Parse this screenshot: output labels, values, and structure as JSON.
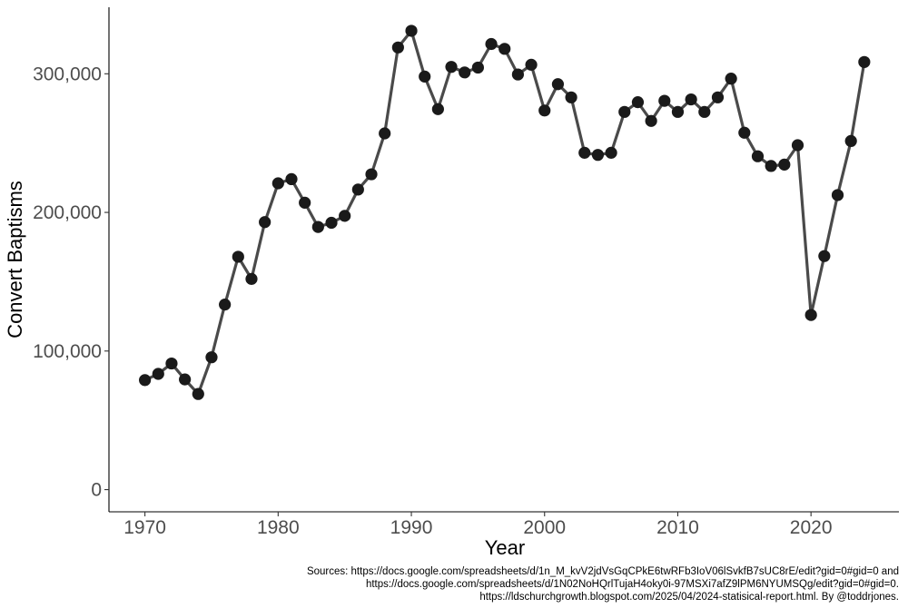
{
  "chart_data": {
    "type": "line",
    "title": "",
    "xlabel": "Year",
    "ylabel": "Convert Baptisms",
    "xlim": [
      1967.3,
      2026.6
    ],
    "ylim": [
      -16000,
      348000
    ],
    "x_ticks": [
      1970,
      1980,
      1990,
      2000,
      2010,
      2020
    ],
    "x_tick_labels": [
      "1970",
      "1980",
      "1990",
      "2000",
      "2010",
      "2020"
    ],
    "y_ticks": [
      0,
      100000,
      200000,
      300000
    ],
    "y_tick_labels": [
      "0",
      "100,000",
      "200,000",
      "300,000"
    ],
    "grid": false,
    "legend": "none",
    "line_color": "#4a4a4a",
    "point_color": "#1a1a1a",
    "series": [
      {
        "x": [
          1970,
          1971,
          1972,
          1973,
          1974,
          1975,
          1976,
          1977,
          1978,
          1979,
          1980,
          1981,
          1982,
          1983,
          1984,
          1985,
          1986,
          1987,
          1988,
          1989,
          1990,
          1991,
          1992,
          1993,
          1994,
          1995,
          1996,
          1997,
          1998,
          1999,
          2000,
          2001,
          2002,
          2003,
          2004,
          2005,
          2006,
          2007,
          2008,
          2009,
          2010,
          2011,
          2012,
          2013,
          2014,
          2015,
          2016,
          2017,
          2018,
          2019,
          2020,
          2021,
          2022,
          2023,
          2024
        ],
        "values": [
          79000,
          83500,
          91000,
          79500,
          69000,
          95500,
          133500,
          168000,
          152000,
          193000,
          221000,
          224000,
          207000,
          189500,
          192500,
          197500,
          216500,
          227500,
          257000,
          319000,
          331000,
          298000,
          274500,
          305000,
          301000,
          304500,
          321500,
          318000,
          299500,
          306500,
          273500,
          292500,
          283000,
          243000,
          241500,
          243000,
          272500,
          279500,
          266000,
          280500,
          272500,
          281500,
          272500,
          283000,
          296500,
          257500,
          240500,
          233500,
          234500,
          248500,
          126000,
          168500,
          212500,
          251500,
          308500
        ]
      }
    ]
  },
  "caption": {
    "line1": "Sources: https://docs.google.com/spreadsheets/d/1n_M_kvV2jdVsGqCPkE6twRFb3IoV06lSvkfB7sUC8rE/edit?gid=0#gid=0 and",
    "line2": "https://docs.google.com/spreadsheets/d/1N02NoHQrlTujaH4oky0i-97MSXi7afZ9lPM6NYUMSQg/edit?gid=0#gid=0.",
    "line3": "https://ldschurchgrowth.blogspot.com/2025/04/2024-statisical-report.html. By @toddrjones."
  }
}
